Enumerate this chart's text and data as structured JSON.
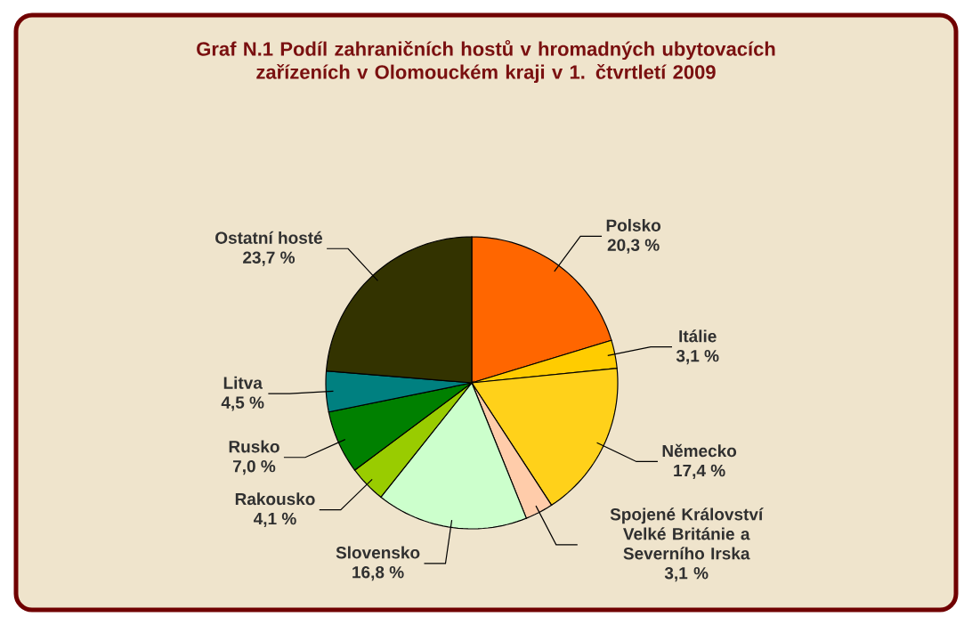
{
  "chart_data": {
    "type": "pie",
    "title": "Graf N.1  Podíl zahraničních hostů v hromadných ubytovacích zařízeních v Olomouckém kraji v 1. čtvrtletí 2009",
    "categories": [
      "Polsko",
      "Itálie",
      "Německo",
      "Spojené Království Velké Británie a Severního Irska",
      "Slovensko",
      "Rakousko",
      "Rusko",
      "Litva",
      "Ostatní hosté"
    ],
    "values": [
      20.3,
      3.1,
      17.4,
      3.1,
      16.8,
      4.1,
      7.0,
      4.5,
      23.7
    ],
    "value_labels": [
      "20,3 %",
      "3,1 %",
      "17,4 %",
      "3,1 %",
      "16,8 %",
      "4,1 %",
      "7,0 %",
      "4,5 %",
      "23,7 %"
    ],
    "colors": [
      "#ff6600",
      "#ffcc00",
      "#ffd11a",
      "#ffccaa",
      "#ccffcc",
      "#99cc00",
      "#008000",
      "#008080",
      "#333300"
    ]
  }
}
